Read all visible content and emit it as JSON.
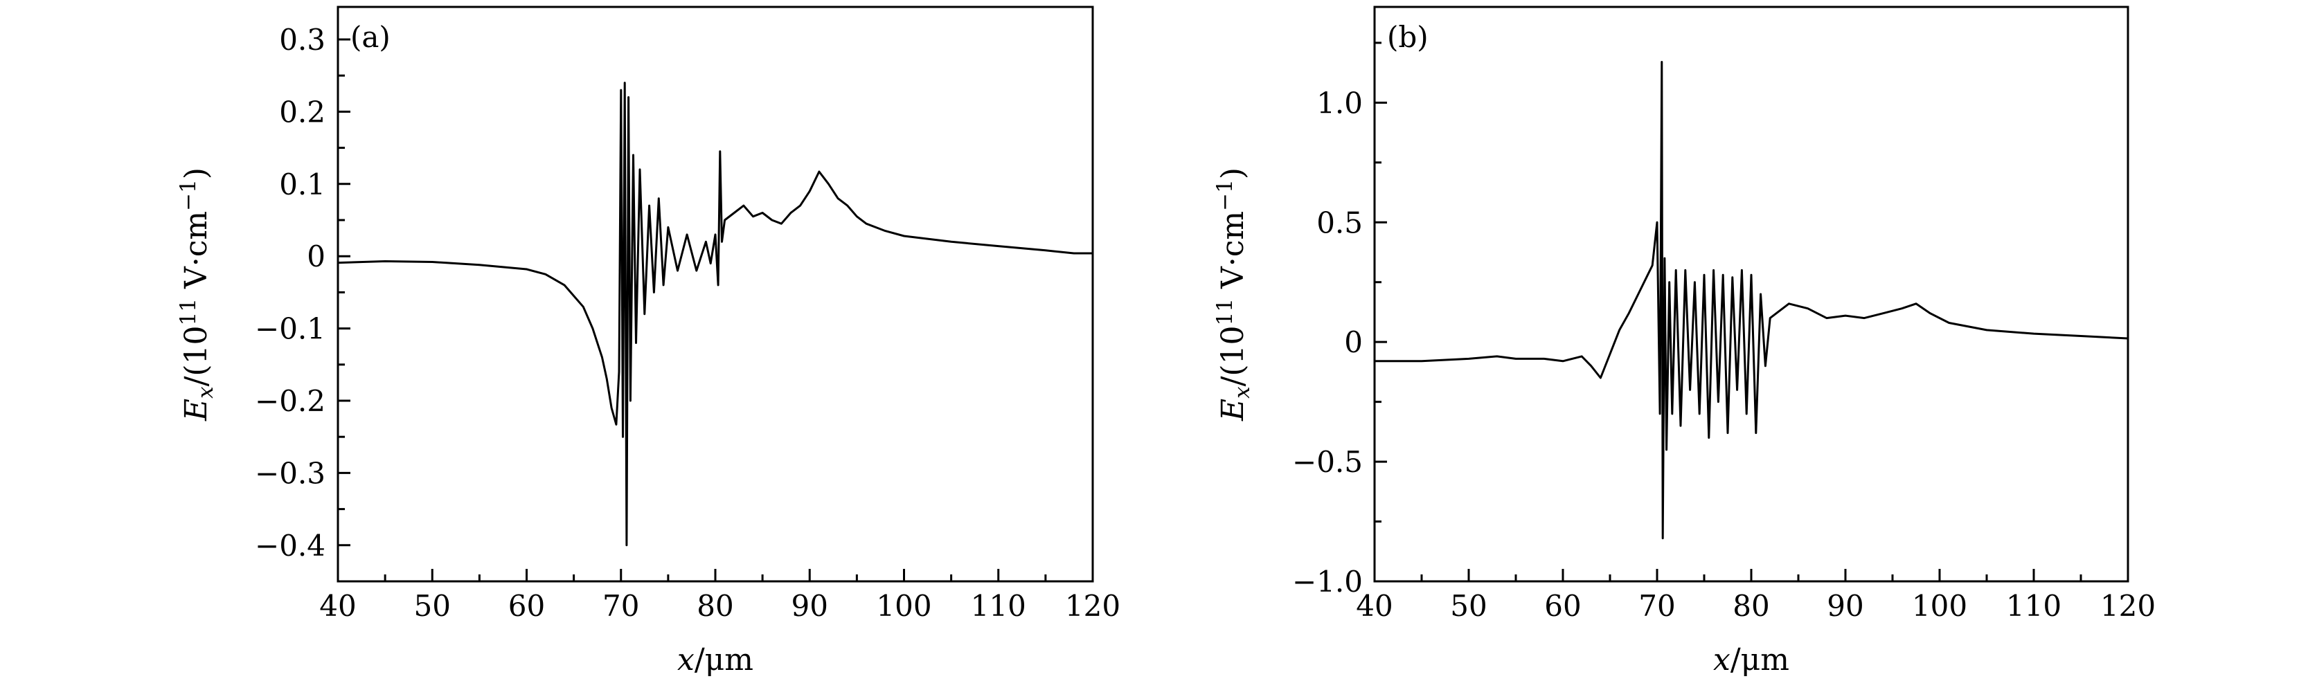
{
  "chart_data": [
    {
      "type": "line",
      "panel_label": "(a)",
      "xlabel": {
        "var": "x",
        "unit": "/μm"
      },
      "ylabel": {
        "var": "E",
        "sub": "x",
        "pre": "/(10",
        "exp": "11",
        "mid": " V·cm",
        "unit_exp": "−1",
        "post": ")"
      },
      "xlim": [
        40,
        120
      ],
      "ylim": [
        -0.45,
        0.345
      ],
      "x_ticks": [
        40,
        50,
        60,
        70,
        80,
        90,
        100,
        110,
        120
      ],
      "x_tick_labels": [
        "40",
        "50",
        "60",
        "70",
        "80",
        "90",
        "100",
        "110",
        "120"
      ],
      "y_ticks": [
        -0.4,
        -0.3,
        -0.2,
        -0.1,
        0,
        0.1,
        0.2,
        0.3
      ],
      "y_tick_labels": [
        "−0.4",
        "−0.3",
        "−0.2",
        "−0.1",
        "0",
        "0.1",
        "0.2",
        "0.3"
      ],
      "grid": false,
      "legend": "none",
      "line_color": "#000000",
      "series": [
        {
          "x": [
            40,
            45,
            50,
            55,
            60,
            62,
            64,
            66,
            67,
            68,
            68.5,
            69,
            69.5,
            69.8,
            70,
            70.2,
            70.4,
            70.6,
            70.8,
            71,
            71.3,
            71.6,
            72,
            72.5,
            73,
            73.5,
            74,
            74.5,
            75,
            76,
            77,
            78,
            79,
            79.5,
            80,
            80.3,
            80.5,
            80.7,
            81,
            82,
            83,
            84,
            85,
            86,
            87,
            88,
            89,
            90,
            91,
            92,
            93,
            94,
            95,
            96,
            98,
            100,
            105,
            110,
            115,
            118,
            120
          ],
          "y": [
            -0.009,
            -0.007,
            -0.008,
            -0.012,
            -0.018,
            -0.025,
            -0.04,
            -0.07,
            -0.1,
            -0.14,
            -0.17,
            -0.21,
            -0.233,
            -0.16,
            0.23,
            -0.25,
            0.24,
            -0.4,
            0.22,
            -0.2,
            0.14,
            -0.12,
            0.12,
            -0.08,
            0.07,
            -0.05,
            0.08,
            -0.04,
            0.04,
            -0.02,
            0.03,
            -0.02,
            0.02,
            -0.01,
            0.03,
            -0.04,
            0.145,
            0.02,
            0.05,
            0.06,
            0.07,
            0.055,
            0.06,
            0.05,
            0.045,
            0.06,
            0.07,
            0.09,
            0.117,
            0.1,
            0.08,
            0.07,
            0.055,
            0.045,
            0.035,
            0.028,
            0.02,
            0.014,
            0.008,
            0.004,
            0.004
          ]
        }
      ]
    },
    {
      "type": "line",
      "panel_label": "(b)",
      "xlabel": {
        "var": "x",
        "unit": "/μm"
      },
      "ylabel": {
        "var": "E",
        "sub": "x",
        "pre": "/(10",
        "exp": "11",
        "mid": " V·cm",
        "unit_exp": "−1",
        "post": ")"
      },
      "xlim": [
        40,
        120
      ],
      "ylim": [
        -1.0,
        1.4
      ],
      "x_ticks": [
        40,
        50,
        60,
        70,
        80,
        90,
        100,
        110,
        120
      ],
      "x_tick_labels": [
        "40",
        "50",
        "60",
        "70",
        "80",
        "90",
        "100",
        "110",
        "120"
      ],
      "y_ticks": [
        -1.0,
        -0.5,
        0,
        0.5,
        1.0
      ],
      "y_tick_labels": [
        "−1.0",
        "−0.5",
        "0",
        "0.5",
        "1.0"
      ],
      "grid": false,
      "legend": "none",
      "line_color": "#000000",
      "series": [
        {
          "x": [
            40,
            45,
            50,
            53,
            55,
            58,
            60,
            62,
            63,
            64,
            65,
            66,
            67,
            68,
            69,
            69.5,
            70,
            70.3,
            70.5,
            70.6,
            70.8,
            71,
            71.3,
            71.6,
            72,
            72.5,
            73,
            73.5,
            74,
            74.5,
            75,
            75.5,
            76,
            76.5,
            77,
            77.5,
            78,
            78.5,
            79,
            79.5,
            80,
            80.5,
            81,
            81.5,
            82,
            84,
            86,
            88,
            90,
            92,
            94,
            96,
            97.5,
            99,
            101,
            105,
            110,
            115,
            120
          ],
          "y": [
            -0.08,
            -0.08,
            -0.07,
            -0.06,
            -0.07,
            -0.07,
            -0.08,
            -0.06,
            -0.1,
            -0.15,
            -0.05,
            0.05,
            0.12,
            0.2,
            0.28,
            0.32,
            0.5,
            -0.3,
            1.17,
            -0.82,
            0.35,
            -0.45,
            0.25,
            -0.3,
            0.3,
            -0.35,
            0.3,
            -0.2,
            0.25,
            -0.3,
            0.28,
            -0.4,
            0.3,
            -0.25,
            0.28,
            -0.38,
            0.27,
            -0.2,
            0.3,
            -0.3,
            0.28,
            -0.38,
            0.2,
            -0.1,
            0.1,
            0.16,
            0.14,
            0.1,
            0.11,
            0.1,
            0.12,
            0.14,
            0.16,
            0.12,
            0.08,
            0.05,
            0.035,
            0.025,
            0.015
          ]
        }
      ]
    }
  ]
}
